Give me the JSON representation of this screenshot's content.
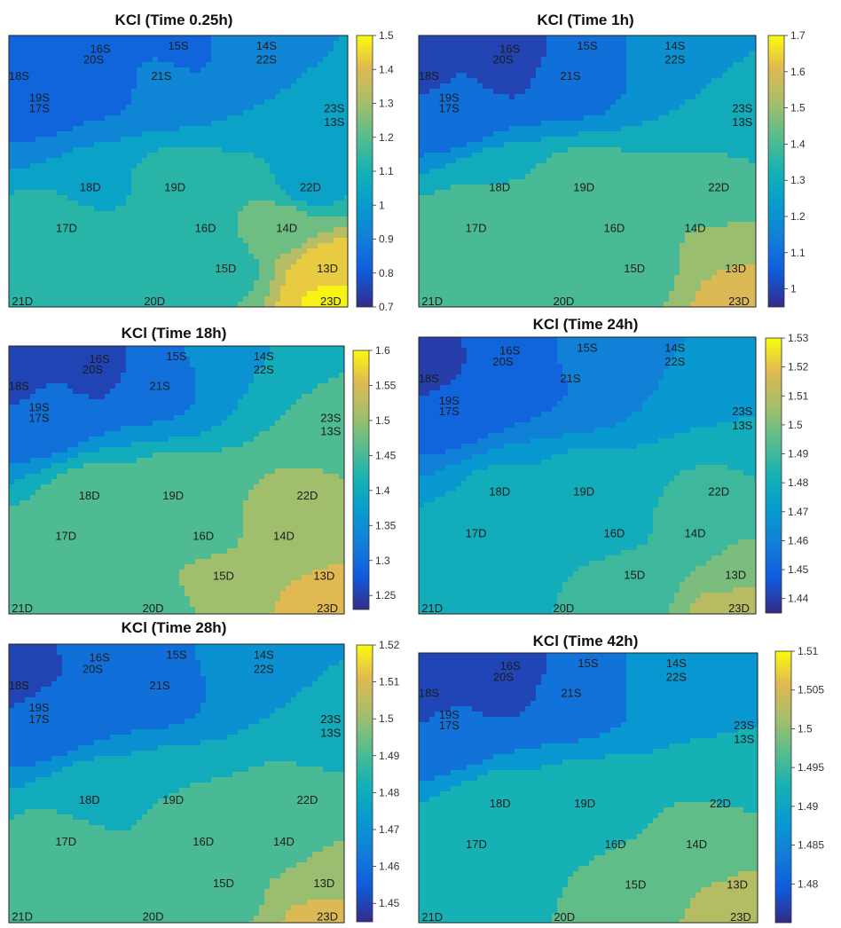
{
  "chart_data": [
    {
      "type": "contour",
      "title": "KCl (Time 0.25h)",
      "colorbar_ticks": [
        "1.5",
        "1.4",
        "1.3",
        "1.2",
        "1.1",
        "1",
        "0.9",
        "0.8",
        "0.7"
      ],
      "clim": [
        0.7,
        1.5
      ],
      "levels": [
        0.78,
        0.88,
        0.98,
        1.08,
        1.18,
        1.28,
        1.38,
        1.48
      ],
      "sensor_labels": [
        "16S",
        "15S",
        "14S",
        "20S",
        "22S",
        "18S",
        "21S",
        "19S",
        "17S",
        "23S",
        "13S",
        "18D",
        "19D",
        "22D",
        "17D",
        "16D",
        "14D",
        "15D",
        "13D",
        "21D",
        "20D",
        "23D"
      ],
      "sensor_values": [
        0.78,
        0.85,
        0.95,
        0.8,
        0.95,
        0.8,
        0.9,
        0.85,
        0.88,
        1.05,
        1.05,
        1.05,
        1.12,
        1.05,
        1.18,
        1.17,
        1.25,
        1.15,
        1.45,
        1.12,
        1.15,
        1.5
      ],
      "background": 1.12
    },
    {
      "type": "contour",
      "title": "KCl (Time 1h)",
      "colorbar_ticks": [
        "1.7",
        "1.6",
        "1.5",
        "1.4",
        "1.3",
        "1.2",
        "1.1",
        "1"
      ],
      "clim": [
        0.95,
        1.7
      ],
      "levels": [
        1.05,
        1.15,
        1.25,
        1.35,
        1.45,
        1.55,
        1.65
      ],
      "sensor_labels": [
        "16S",
        "15S",
        "14S",
        "20S",
        "22S",
        "18S",
        "21S",
        "19S",
        "17S",
        "23S",
        "13S",
        "18D",
        "19D",
        "22D",
        "17D",
        "16D",
        "14D",
        "15D",
        "13D",
        "21D",
        "20D",
        "23D"
      ],
      "sensor_values": [
        1.0,
        1.1,
        1.2,
        1.0,
        1.2,
        1.0,
        1.1,
        1.1,
        1.1,
        1.3,
        1.3,
        1.35,
        1.4,
        1.4,
        1.42,
        1.42,
        1.45,
        1.4,
        1.55,
        1.4,
        1.4,
        1.6
      ],
      "background": 1.4
    },
    {
      "type": "contour",
      "title": "KCl (Time 18h)",
      "colorbar_ticks": [
        "1.6",
        "1.55",
        "1.5",
        "1.45",
        "1.4",
        "1.35",
        "1.3",
        "1.25"
      ],
      "clim": [
        1.23,
        1.6
      ],
      "levels": [
        1.28,
        1.33,
        1.38,
        1.43,
        1.48,
        1.53,
        1.58
      ],
      "sensor_labels": [
        "16S",
        "15S",
        "14S",
        "20S",
        "22S",
        "18S",
        "21S",
        "19S",
        "17S",
        "23S",
        "13S",
        "18D",
        "19D",
        "22D",
        "17D",
        "16D",
        "14D",
        "15D",
        "13D",
        "21D",
        "20D",
        "23D"
      ],
      "sensor_values": [
        1.27,
        1.33,
        1.38,
        1.27,
        1.38,
        1.26,
        1.32,
        1.3,
        1.3,
        1.45,
        1.45,
        1.45,
        1.47,
        1.49,
        1.45,
        1.46,
        1.5,
        1.5,
        1.53,
        1.48,
        1.47,
        1.56
      ],
      "background": 1.48
    },
    {
      "type": "contour",
      "title": "KCl (Time 24h)",
      "colorbar_ticks": [
        "1.53",
        "1.52",
        "1.51",
        "1.5",
        "1.49",
        "1.48",
        "1.47",
        "1.46",
        "1.45",
        "1.44"
      ],
      "clim": [
        1.435,
        1.53
      ],
      "levels": [
        1.445,
        1.455,
        1.465,
        1.475,
        1.485,
        1.495,
        1.505,
        1.515
      ],
      "sensor_labels": [
        "16S",
        "15S",
        "14S",
        "20S",
        "22S",
        "18S",
        "21S",
        "19S",
        "17S",
        "23S",
        "13S",
        "18D",
        "19D",
        "22D",
        "17D",
        "16D",
        "14D",
        "15D",
        "13D",
        "21D",
        "20D",
        "23D"
      ],
      "sensor_values": [
        1.445,
        1.458,
        1.465,
        1.445,
        1.465,
        1.44,
        1.455,
        1.45,
        1.452,
        1.475,
        1.475,
        1.477,
        1.48,
        1.487,
        1.478,
        1.482,
        1.488,
        1.49,
        1.5,
        1.485,
        1.485,
        1.515
      ],
      "background": 1.483
    },
    {
      "type": "contour",
      "title": "KCl (Time 28h)",
      "colorbar_ticks": [
        "1.52",
        "1.51",
        "1.5",
        "1.49",
        "1.48",
        "1.47",
        "1.46",
        "1.45"
      ],
      "clim": [
        1.445,
        1.52
      ],
      "levels": [
        1.455,
        1.465,
        1.475,
        1.485,
        1.495,
        1.505,
        1.515
      ],
      "sensor_labels": [
        "16S",
        "15S",
        "14S",
        "20S",
        "22S",
        "18S",
        "21S",
        "19S",
        "17S",
        "23S",
        "13S",
        "18D",
        "19D",
        "22D",
        "17D",
        "16D",
        "14D",
        "15D",
        "13D",
        "21D",
        "20D",
        "23D"
      ],
      "sensor_values": [
        1.455,
        1.465,
        1.47,
        1.455,
        1.47,
        1.45,
        1.462,
        1.458,
        1.46,
        1.48,
        1.48,
        1.482,
        1.485,
        1.49,
        1.49,
        1.49,
        1.492,
        1.492,
        1.5,
        1.49,
        1.49,
        1.51
      ],
      "background": 1.488
    },
    {
      "type": "contour",
      "title": "KCl (Time 42h)",
      "colorbar_ticks": [
        "1.51",
        "1.505",
        "1.5",
        "1.495",
        "1.49",
        "1.485",
        "1.48"
      ],
      "clim": [
        1.475,
        1.51
      ],
      "levels": [
        1.48,
        1.485,
        1.49,
        1.495,
        1.5,
        1.505
      ],
      "sensor_labels": [
        "16S",
        "15S",
        "14S",
        "20S",
        "22S",
        "18S",
        "21S",
        "19S",
        "17S",
        "23S",
        "13S",
        "18D",
        "19D",
        "22D",
        "17D",
        "16D",
        "14D",
        "15D",
        "13D",
        "21D",
        "20D",
        "23D"
      ],
      "sensor_values": [
        1.478,
        1.484,
        1.487,
        1.478,
        1.487,
        1.477,
        1.482,
        1.48,
        1.481,
        1.49,
        1.49,
        1.492,
        1.493,
        1.495,
        1.495,
        1.495,
        1.496,
        1.496,
        1.5,
        1.495,
        1.495,
        1.505
      ],
      "background": 1.495
    }
  ]
}
